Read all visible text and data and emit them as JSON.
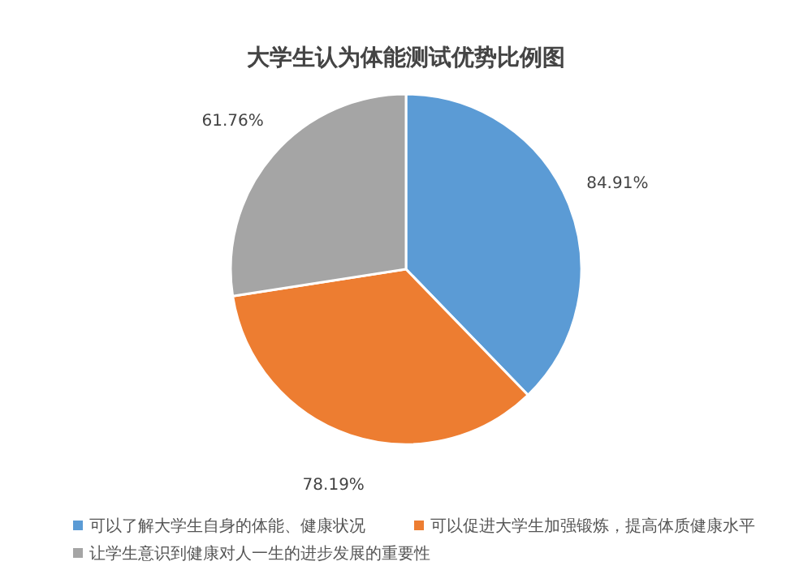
{
  "chart_data": {
    "type": "pie",
    "title": "大学生认为体能测试优势比例图",
    "categories": [
      "可以了解大学生自身的体能、健康状况",
      "可以促进大学生加强锻炼，提高体质健康水平",
      "让学生意识到健康对人一生的进步发展的重要性"
    ],
    "values": [
      84.91,
      78.19,
      61.76
    ],
    "colors": [
      "#5b9bd5",
      "#ed7d31",
      "#a5a5a5"
    ],
    "value_labels": [
      "84.91%",
      "78.19%",
      "61.76%"
    ],
    "legend": "bottom"
  }
}
